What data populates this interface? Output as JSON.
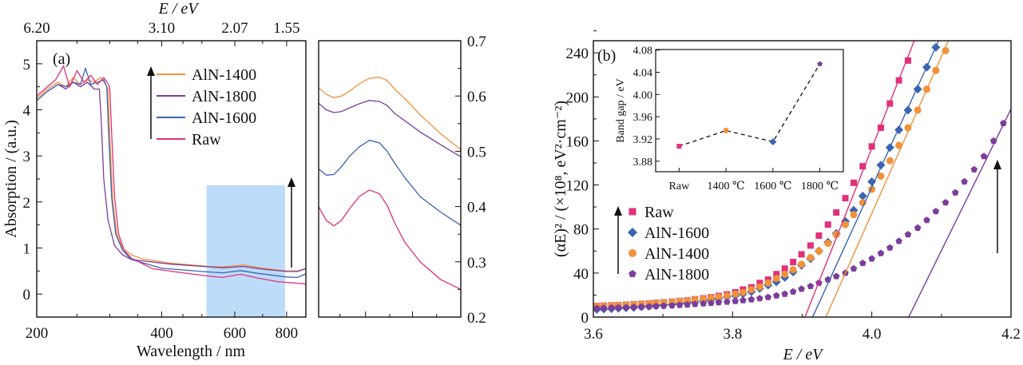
{
  "colors": {
    "AlN-1400": "#f0923a",
    "AlN-1800": "#7d3d9c",
    "AlN-1600": "#3b64b1",
    "Raw": "#e2307b",
    "highlight": "#bcdcfa"
  },
  "chart_data": [
    {
      "id": "a",
      "panel_label": "(a)",
      "type": "line",
      "xlabel": "Wavelength / nm",
      "ylabel": "Absorption / (a.u.)",
      "top_xlabel": "E / eV",
      "x_scale": "log",
      "xlim": [
        200,
        890
      ],
      "ylim": [
        -0.5,
        5.5
      ],
      "xticks": [
        200,
        400,
        600,
        800
      ],
      "xtick_labels": [
        "200",
        "400",
        "600",
        "800"
      ],
      "top_ticks_at_wavelength": [
        200,
        400,
        600,
        800
      ],
      "top_tick_labels": [
        "6.20",
        "3.10",
        "2.07",
        "1.55"
      ],
      "yticks": [
        0,
        1,
        2,
        3,
        4,
        5
      ],
      "ytick_labels": [
        "0",
        "1",
        "2",
        "3",
        "4",
        "5"
      ],
      "highlight_region": {
        "x": [
          513,
          793
        ],
        "y": [
          -0.5,
          2.36
        ]
      },
      "legend": {
        "placement": "top-center",
        "entries": [
          "AlN-1400",
          "AlN-1800",
          "AlN-1600",
          "Raw"
        ]
      },
      "series": [
        {
          "name": "AlN-1400",
          "points": [
            [
              200,
              4.25
            ],
            [
              212,
              4.45
            ],
            [
              225,
              4.6
            ],
            [
              235,
              4.5
            ],
            [
              245,
              4.7
            ],
            [
              255,
              4.55
            ],
            [
              265,
              4.65
            ],
            [
              275,
              4.6
            ],
            [
              285,
              4.7
            ],
            [
              293,
              4.55
            ],
            [
              297,
              4.45
            ],
            [
              300,
              3.4
            ],
            [
              305,
              2.0
            ],
            [
              312,
              1.3
            ],
            [
              322,
              1.0
            ],
            [
              338,
              0.85
            ],
            [
              360,
              0.76
            ],
            [
              420,
              0.67
            ],
            [
              520,
              0.6
            ],
            [
              560,
              0.59
            ],
            [
              630,
              0.63
            ],
            [
              700,
              0.56
            ],
            [
              800,
              0.5
            ],
            [
              850,
              0.5
            ],
            [
              890,
              0.55
            ]
          ]
        },
        {
          "name": "AlN-1800",
          "points": [
            [
              200,
              4.2
            ],
            [
              212,
              4.4
            ],
            [
              225,
              4.55
            ],
            [
              235,
              4.45
            ],
            [
              245,
              4.6
            ],
            [
              255,
              4.5
            ],
            [
              265,
              4.6
            ],
            [
              275,
              4.45
            ],
            [
              283,
              4.45
            ],
            [
              286,
              3.8
            ],
            [
              290,
              2.5
            ],
            [
              297,
              1.6
            ],
            [
              308,
              1.05
            ],
            [
              322,
              0.85
            ],
            [
              338,
              0.75
            ],
            [
              360,
              0.72
            ],
            [
              420,
              0.65
            ],
            [
              520,
              0.59
            ],
            [
              560,
              0.57
            ],
            [
              630,
              0.6
            ],
            [
              700,
              0.54
            ],
            [
              800,
              0.49
            ],
            [
              850,
              0.49
            ],
            [
              890,
              0.55
            ]
          ]
        },
        {
          "name": "AlN-1600",
          "points": [
            [
              200,
              4.2
            ],
            [
              212,
              4.4
            ],
            [
              225,
              4.55
            ],
            [
              235,
              4.5
            ],
            [
              245,
              4.6
            ],
            [
              255,
              4.55
            ],
            [
              262,
              4.9
            ],
            [
              270,
              4.55
            ],
            [
              280,
              4.6
            ],
            [
              290,
              4.65
            ],
            [
              295,
              4.5
            ],
            [
              298,
              3.5
            ],
            [
              303,
              2.1
            ],
            [
              310,
              1.3
            ],
            [
              322,
              0.95
            ],
            [
              338,
              0.75
            ],
            [
              400,
              0.56
            ],
            [
              500,
              0.49
            ],
            [
              560,
              0.46
            ],
            [
              620,
              0.51
            ],
            [
              680,
              0.45
            ],
            [
              800,
              0.37
            ],
            [
              850,
              0.36
            ],
            [
              890,
              0.44
            ]
          ]
        },
        {
          "name": "Raw",
          "points": [
            [
              200,
              4.3
            ],
            [
              212,
              4.5
            ],
            [
              222,
              4.65
            ],
            [
              232,
              4.95
            ],
            [
              240,
              4.5
            ],
            [
              250,
              4.85
            ],
            [
              260,
              4.6
            ],
            [
              270,
              4.75
            ],
            [
              280,
              4.55
            ],
            [
              290,
              4.7
            ],
            [
              298,
              4.55
            ],
            [
              300,
              4.45
            ],
            [
              303,
              3.5
            ],
            [
              308,
              2.1
            ],
            [
              315,
              1.3
            ],
            [
              325,
              0.95
            ],
            [
              338,
              0.78
            ],
            [
              380,
              0.55
            ],
            [
              450,
              0.46
            ],
            [
              520,
              0.39
            ],
            [
              560,
              0.36
            ],
            [
              620,
              0.43
            ],
            [
              680,
              0.35
            ],
            [
              760,
              0.27
            ],
            [
              890,
              0.22
            ]
          ]
        }
      ]
    },
    {
      "id": "a-zoom",
      "type": "line",
      "xlim": [
        520,
        800
      ],
      "ylim": [
        0.2,
        0.7
      ],
      "yticks": [
        0.2,
        0.3,
        0.4,
        0.5,
        0.6,
        0.7
      ],
      "ytick_labels": [
        "0.2",
        "0.3",
        "0.4",
        "0.5",
        "0.6",
        "0.7"
      ],
      "series": [
        {
          "name": "AlN-1400",
          "points": [
            [
              520,
              0.615
            ],
            [
              535,
              0.603
            ],
            [
              550,
              0.597
            ],
            [
              565,
              0.6
            ],
            [
              580,
              0.608
            ],
            [
              600,
              0.622
            ],
            [
              620,
              0.632
            ],
            [
              640,
              0.634
            ],
            [
              655,
              0.628
            ],
            [
              670,
              0.612
            ],
            [
              690,
              0.595
            ],
            [
              720,
              0.566
            ],
            [
              760,
              0.532
            ],
            [
              800,
              0.503
            ]
          ]
        },
        {
          "name": "AlN-1800",
          "points": [
            [
              520,
              0.587
            ],
            [
              535,
              0.575
            ],
            [
              550,
              0.57
            ],
            [
              565,
              0.572
            ],
            [
              580,
              0.578
            ],
            [
              600,
              0.586
            ],
            [
              620,
              0.592
            ],
            [
              640,
              0.59
            ],
            [
              655,
              0.583
            ],
            [
              670,
              0.568
            ],
            [
              690,
              0.555
            ],
            [
              720,
              0.535
            ],
            [
              760,
              0.512
            ],
            [
              800,
              0.49
            ]
          ]
        },
        {
          "name": "AlN-1600",
          "points": [
            [
              520,
              0.468
            ],
            [
              535,
              0.457
            ],
            [
              550,
              0.458
            ],
            [
              565,
              0.472
            ],
            [
              580,
              0.49
            ],
            [
              600,
              0.508
            ],
            [
              620,
              0.52
            ],
            [
              640,
              0.515
            ],
            [
              655,
              0.5
            ],
            [
              670,
              0.478
            ],
            [
              690,
              0.452
            ],
            [
              720,
              0.418
            ],
            [
              760,
              0.39
            ],
            [
              800,
              0.366
            ]
          ]
        },
        {
          "name": "Raw",
          "points": [
            [
              520,
              0.4
            ],
            [
              535,
              0.375
            ],
            [
              550,
              0.365
            ],
            [
              565,
              0.375
            ],
            [
              580,
              0.395
            ],
            [
              600,
              0.418
            ],
            [
              620,
              0.43
            ],
            [
              640,
              0.423
            ],
            [
              655,
              0.402
            ],
            [
              670,
              0.37
            ],
            [
              690,
              0.335
            ],
            [
              720,
              0.3
            ],
            [
              760,
              0.268
            ],
            [
              800,
              0.25
            ]
          ]
        }
      ]
    },
    {
      "id": "b",
      "panel_label": "(b)",
      "type": "scatter",
      "xlabel": "E / eV",
      "ylabel": "(αE)² / (×10⁸, eV²·cm⁻²)",
      "xlim": [
        3.6,
        4.2
      ],
      "ylim": [
        0,
        251
      ],
      "xticks": [
        3.6,
        3.8,
        4.0,
        4.2
      ],
      "xtick_labels": [
        "3.6",
        "3.8",
        "4.0",
        "4.2"
      ],
      "yticks": [
        0,
        40,
        80,
        120,
        160,
        200,
        240
      ],
      "ytick_labels": [
        "0",
        "40",
        "80",
        "120",
        "160",
        "200",
        "240"
      ],
      "legend": {
        "placement": "center-left",
        "entries": [
          "Raw",
          "AlN-1600",
          "AlN-1400",
          "AlN-1800"
        ]
      },
      "x": [
        3.605,
        3.615,
        3.626,
        3.636,
        3.647,
        3.658,
        3.669,
        3.68,
        3.69,
        3.701,
        3.713,
        3.724,
        3.735,
        3.746,
        3.758,
        3.769,
        3.78,
        3.792,
        3.804,
        3.815,
        3.827,
        3.839,
        3.851,
        3.863,
        3.875,
        3.887,
        3.899,
        3.912,
        3.924,
        3.937,
        3.949,
        3.962,
        3.974,
        3.987,
        4.0,
        4.013,
        4.026,
        4.039,
        4.052,
        4.066,
        4.079,
        4.092,
        4.106,
        4.12,
        4.133,
        4.147,
        4.161,
        4.175,
        4.189
      ],
      "series": [
        {
          "name": "Raw",
          "marker": "square",
          "values": [
            10,
            10.3,
            10.6,
            10.9,
            11.2,
            11.6,
            12,
            12.4,
            12.9,
            13.4,
            14,
            14.6,
            15.3,
            16.1,
            17,
            18,
            19.2,
            20.6,
            22.5,
            25,
            27,
            31,
            34,
            39,
            44,
            50,
            57,
            65,
            74,
            84,
            95,
            108,
            122,
            137,
            155,
            172,
            194,
            215,
            233
          ]
        },
        {
          "name": "AlN-1600",
          "marker": "diamond",
          "values": [
            7,
            7.3,
            7.6,
            8,
            8.4,
            8.8,
            9.3,
            9.8,
            10.3,
            10.9,
            11.5,
            12.2,
            13,
            13.8,
            14.8,
            15.8,
            17,
            18.3,
            19.5,
            21,
            23,
            26,
            29,
            32,
            36,
            41,
            47,
            53,
            60,
            68,
            76,
            87,
            97,
            110,
            123,
            138,
            154,
            170,
            188,
            207,
            227,
            245
          ]
        },
        {
          "name": "AlN-1400",
          "marker": "circle",
          "values": [
            10,
            10.2,
            10.5,
            10.8,
            11.1,
            11.5,
            11.9,
            12.3,
            12.8,
            13.3,
            13.8,
            14.4,
            15,
            15.7,
            16.5,
            17.4,
            18.4,
            19.5,
            21,
            22.5,
            25,
            27.5,
            31,
            35,
            39,
            43,
            48,
            54,
            60,
            67,
            75,
            84,
            93,
            104,
            116,
            128,
            142,
            156,
            172,
            188,
            207,
            224,
            242
          ]
        },
        {
          "name": "AlN-1800",
          "marker": "pentagon",
          "values": [
            8,
            8.2,
            8.4,
            8.6,
            8.8,
            9,
            9.3,
            9.6,
            9.9,
            10.2,
            10.5,
            10.9,
            11.3,
            11.7,
            12.2,
            12.7,
            13.2,
            13.8,
            14.5,
            15.2,
            16,
            17,
            18,
            19.5,
            21,
            23,
            25.5,
            28,
            31,
            34,
            37,
            40,
            44,
            49,
            53,
            58,
            63,
            69,
            75,
            81,
            88,
            96,
            104,
            113,
            123,
            134,
            146,
            160,
            176
          ]
        }
      ],
      "fit_lines": [
        {
          "name": "Raw",
          "from": [
            3.904,
            0
          ],
          "to": [
            4.061,
            251
          ]
        },
        {
          "name": "AlN-1600",
          "from": [
            3.915,
            0
          ],
          "to": [
            4.096,
            251
          ]
        },
        {
          "name": "AlN-1400",
          "from": [
            3.934,
            0
          ],
          "to": [
            4.11,
            251
          ]
        },
        {
          "name": "AlN-1800",
          "from": [
            4.053,
            0
          ],
          "to": [
            4.2,
            189
          ]
        }
      ]
    },
    {
      "id": "b-inset",
      "type": "line",
      "ylabel": "Band gap / eV",
      "categories": [
        "Raw",
        "1400 ℃",
        "1600 ℃",
        "1800 ℃"
      ],
      "values": [
        3.907,
        3.935,
        3.915,
        4.055
      ],
      "markers": [
        "square",
        "circle",
        "diamond",
        "pentagon"
      ],
      "marker_series": [
        "Raw",
        "AlN-1400",
        "AlN-1600",
        "AlN-1800"
      ],
      "line_style": "dashed",
      "ylim": [
        3.861,
        4.081
      ],
      "yticks": [
        3.88,
        3.92,
        3.96,
        4.0,
        4.04,
        4.08
      ],
      "ytick_labels": [
        "3.88",
        "3.92",
        "3.96",
        "4.00",
        "4.04",
        "4.08"
      ]
    }
  ]
}
